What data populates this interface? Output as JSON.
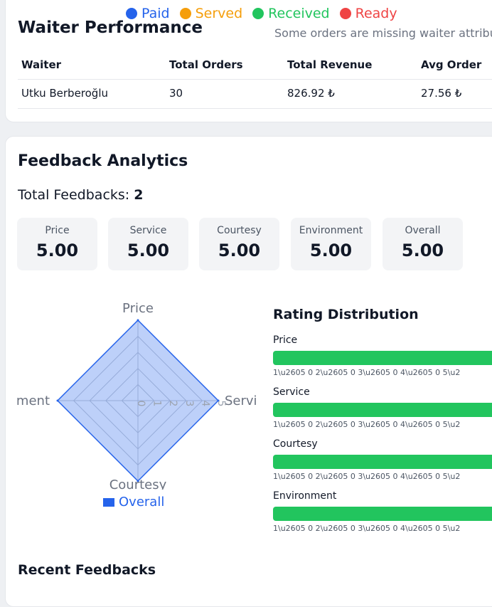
{
  "status_legend": [
    {
      "label": "Paid",
      "color": "#2563eb"
    },
    {
      "label": "Served",
      "color": "#f59e0b"
    },
    {
      "label": "Received",
      "color": "#22c55e"
    },
    {
      "label": "Ready",
      "color": "#ef4444"
    }
  ],
  "waiter_performance": {
    "title": "Waiter Performance",
    "note": "Some orders are missing waiter attribu",
    "columns": [
      "Waiter",
      "Total Orders",
      "Total Revenue",
      "Avg Order"
    ],
    "rows": [
      [
        "Utku Berberoğlu",
        "30",
        "826.92 ₺",
        "27.56 ₺"
      ]
    ]
  },
  "feedback": {
    "title": "Feedback Analytics",
    "total_label": "Total Feedbacks:",
    "total_value": "2",
    "metrics": [
      {
        "label": "Price",
        "value": "5.00"
      },
      {
        "label": "Service",
        "value": "5.00"
      },
      {
        "label": "Courtesy",
        "value": "5.00"
      },
      {
        "label": "Environment",
        "value": "5.00"
      },
      {
        "label": "Overall",
        "value": "5.00"
      }
    ]
  },
  "chart_data": {
    "type": "radar",
    "axes": [
      "Price",
      "Servi",
      "Courtesy",
      "ment"
    ],
    "ticks": [
      "0",
      "1",
      "2",
      "3",
      "4",
      "5"
    ],
    "range": [
      0,
      5
    ],
    "series": [
      {
        "name": "Overall",
        "values": [
          5,
          5,
          5,
          5
        ],
        "color": "#2563eb"
      }
    ]
  },
  "distribution": {
    "title": "Rating Distribution",
    "ticks": "1\\u2605 0   2\\u2605 0   3\\u2605 0   4\\u2605 0   5\\u2",
    "items": [
      {
        "label": "Price",
        "fill": 1.0
      },
      {
        "label": "Service",
        "fill": 1.0
      },
      {
        "label": "Courtesy",
        "fill": 1.0
      },
      {
        "label": "Environment",
        "fill": 1.0
      }
    ],
    "bar_color": "#22c55e"
  },
  "recent": {
    "title": "Recent Feedbacks"
  }
}
